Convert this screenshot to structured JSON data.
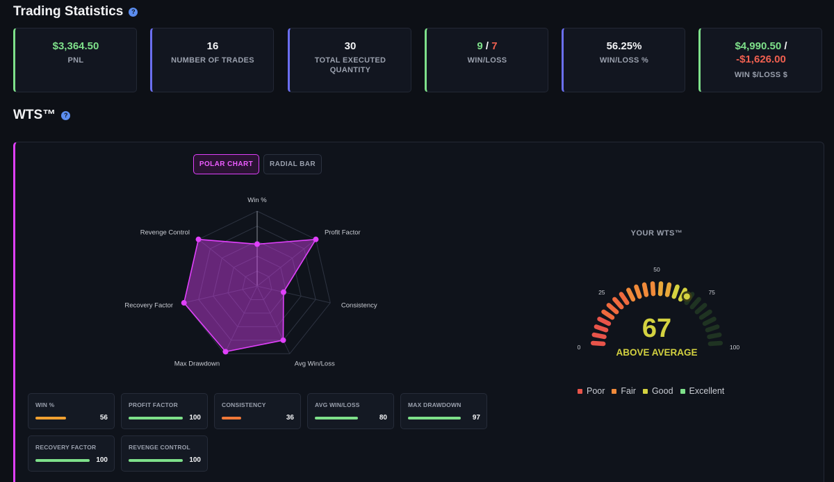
{
  "header": {
    "title": "Trading Statistics",
    "help_icon": "?"
  },
  "stats": {
    "pnl": {
      "value": "$3,364.50",
      "label": "PNL"
    },
    "trades": {
      "value": "16",
      "label": "NUMBER OF TRADES"
    },
    "quantity": {
      "value": "30",
      "label": "TOTAL EXECUTED QUANTITY"
    },
    "winloss": {
      "wins": "9",
      "sep": " / ",
      "losses": "7",
      "label": "WIN/LOSS"
    },
    "winloss_pct": {
      "value": "56.25%",
      "label": "WIN/LOSS %"
    },
    "winloss_amount": {
      "win": "$4,990.50",
      "sep": " /",
      "loss": "-$1,626.00",
      "label": "WIN $/LOSS $"
    }
  },
  "wts": {
    "title": "WTS™",
    "help_icon": "?",
    "tabs": {
      "polar": "POLAR CHART",
      "radial": "RADIAL BAR"
    },
    "gauge": {
      "title": "YOUR WTS™",
      "value": "67",
      "rating": "ABOVE AVERAGE",
      "score": 67,
      "ticks": [
        "0",
        "25",
        "50",
        "75",
        "100"
      ]
    },
    "legend": [
      {
        "label": "Poor",
        "color": "#e8544a"
      },
      {
        "label": "Fair",
        "color": "#f08a3a"
      },
      {
        "label": "Good",
        "color": "#d4d240"
      },
      {
        "label": "Excellent",
        "color": "#7ee08a"
      }
    ],
    "metrics": [
      {
        "label": "WIN %",
        "value": "56",
        "color": "#f0a030"
      },
      {
        "label": "PROFIT FACTOR",
        "value": "100",
        "color": "#7ee08a"
      },
      {
        "label": "CONSISTENCY",
        "value": "36",
        "color": "#f07838"
      },
      {
        "label": "AVG WIN/LOSS",
        "value": "80",
        "color": "#7ee08a"
      },
      {
        "label": "MAX DRAWDOWN",
        "value": "97",
        "color": "#7ee08a"
      },
      {
        "label": "RECOVERY FACTOR",
        "value": "100",
        "color": "#7ee08a"
      },
      {
        "label": "REVENGE CONTROL",
        "value": "100",
        "color": "#7ee08a"
      }
    ]
  },
  "chart_data": {
    "type": "radar",
    "categories": [
      "Win %",
      "Profit Factor",
      "Consistency",
      "Avg Win/Loss",
      "Max Drawdown",
      "Recovery Factor",
      "Revenge Control"
    ],
    "values": [
      56,
      100,
      36,
      80,
      97,
      100,
      100
    ],
    "ylim": [
      0,
      100
    ],
    "color": "#e040fb",
    "grid": true
  }
}
